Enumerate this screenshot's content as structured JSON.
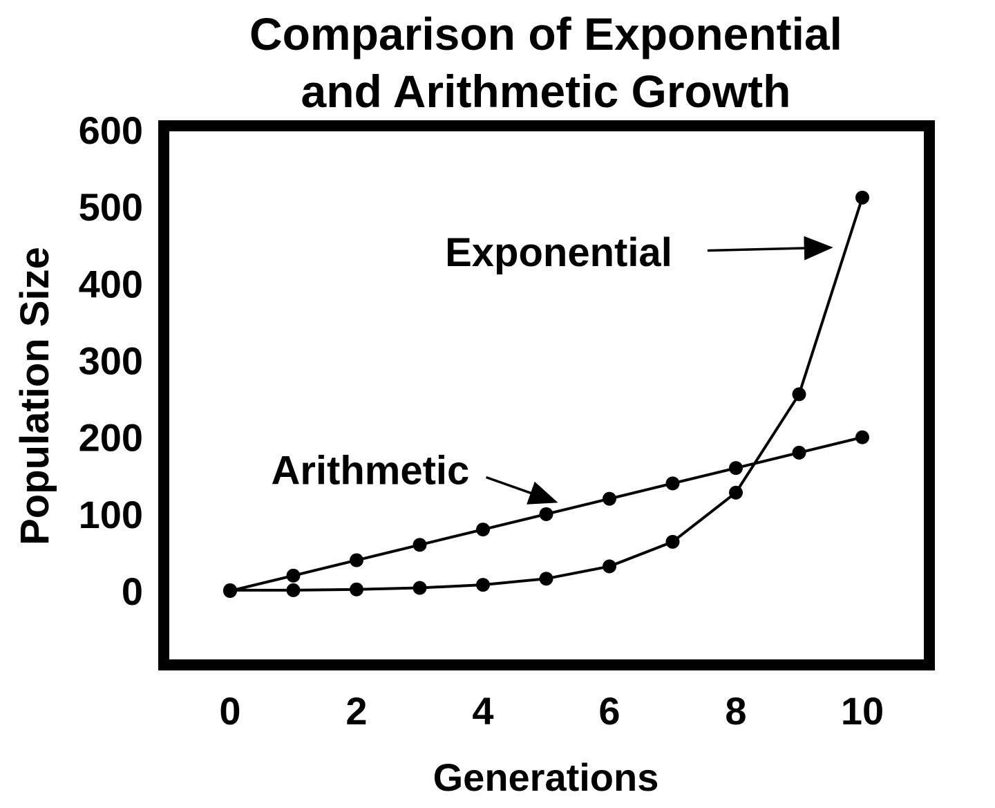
{
  "chart_data": {
    "type": "line",
    "title": "Comparison of Exponential\nand Arithmetic Growth",
    "xlabel": "Generations",
    "ylabel": "Population Size",
    "x_ticks": [
      "0",
      "2",
      "4",
      "6",
      "8",
      "10"
    ],
    "x_tick_values": [
      0,
      2,
      4,
      6,
      8,
      10
    ],
    "y_ticks": [
      "0",
      "100",
      "200",
      "300",
      "400",
      "500",
      "600"
    ],
    "y_tick_values": [
      0,
      100,
      200,
      300,
      400,
      500,
      600
    ],
    "xlim": [
      0,
      10
    ],
    "ylim": [
      0,
      600
    ],
    "grid": false,
    "legend_position": "inline-annotations",
    "x": [
      0,
      1,
      2,
      3,
      4,
      5,
      6,
      7,
      8,
      9,
      10
    ],
    "series": [
      {
        "name": "Arithmetic",
        "values": [
          0,
          20,
          40,
          60,
          80,
          100,
          120,
          140,
          160,
          180,
          200
        ]
      },
      {
        "name": "Exponential",
        "values": [
          1,
          1,
          2,
          4,
          8,
          16,
          32,
          64,
          128,
          256,
          512
        ]
      }
    ],
    "annotations": [
      {
        "label": "Exponential",
        "label_x": 3.4,
        "label_y": 441,
        "arrow_from_x": 7.55,
        "arrow_from_y": 443,
        "arrow_to_x": 9.5,
        "arrow_to_y": 447
      },
      {
        "label": "Arithmetic",
        "label_x": 0.65,
        "label_y": 157,
        "arrow_from_x": 4.05,
        "arrow_from_y": 148,
        "arrow_to_x": 5.15,
        "arrow_to_y": 116
      }
    ],
    "line_color": "#000000",
    "background_color": "#ffffff"
  }
}
